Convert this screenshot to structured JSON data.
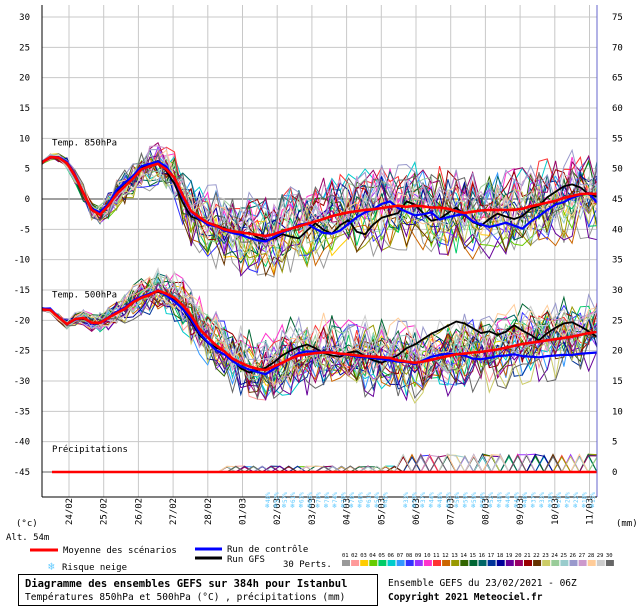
{
  "colors": {
    "mean": "#ff0000",
    "control": "#0000ff",
    "gfs": "#000000",
    "axis": "#000000",
    "grid": "#c8c8c8",
    "snow": "#66ccff"
  },
  "chart_data": {
    "type": "line",
    "y_left_ticks": [
      "30",
      "25",
      "20",
      "15",
      "10",
      "5",
      "0",
      "-5",
      "-10",
      "-15",
      "-20",
      "-25",
      "-30",
      "-35",
      "-40",
      "-45"
    ],
    "y_right_ticks": [
      "75",
      "70",
      "65",
      "60",
      "55",
      "50",
      "45",
      "40",
      "35",
      "30",
      "25",
      "20",
      "15",
      "10",
      "5",
      "0"
    ],
    "ylim_left": [
      -45,
      30
    ],
    "ylim_right": [
      0,
      75
    ],
    "left_unit": "(°c)",
    "right_unit": "(mm)",
    "altitude": "Alt. 54m",
    "x_tick_labels": [
      "24/02",
      "25/02",
      "26/02",
      "27/02",
      "28/02",
      "01/03",
      "02/03",
      "03/03",
      "04/03",
      "05/03",
      "06/03",
      "07/03",
      "08/03",
      "09/03",
      "10/03",
      "11/03"
    ],
    "panel_labels": {
      "t850": "Temp. 850hPa",
      "t500": "Temp. 500hPa",
      "precip": "Précipitations"
    },
    "series": [
      {
        "name": "Moyenne des scénarios",
        "panel": "t850",
        "color": "#ff0000",
        "values": [
          6.0,
          6.9,
          6.8,
          5.9,
          3.8,
          1.0,
          -1.8,
          -2.6,
          -1.1,
          0.8,
          2.1,
          3.4,
          4.9,
          5.4,
          5.8,
          4.9,
          3.5,
          0.6,
          -2.0,
          -3.0,
          -3.9,
          -4.4,
          -5.0,
          -5.3,
          -5.5,
          -5.7,
          -5.9,
          -6.1,
          -5.8,
          -5.3,
          -4.9,
          -4.5,
          -4.1,
          -3.7,
          -3.3,
          -2.8,
          -2.5,
          -2.2,
          -2.0,
          -1.8,
          -1.7,
          -1.5,
          -1.3,
          -1.1,
          -1.3,
          -1.1,
          -1.2,
          -1.4,
          -1.4,
          -1.6,
          -2.0,
          -2.3,
          -2.1,
          -1.9,
          -1.8,
          -1.8,
          -1.8,
          -1.8,
          -1.6,
          -1.2,
          -0.9,
          -0.6,
          -0.3,
          0.2,
          0.5,
          0.8,
          0.9,
          0.8
        ]
      },
      {
        "name": "Run de contrôle",
        "panel": "t850",
        "color": "#0000ff",
        "values": [
          6.1,
          6.9,
          6.9,
          6.1,
          4.0,
          1.0,
          -1.6,
          -2.2,
          -0.8,
          1.5,
          2.7,
          3.8,
          5.4,
          5.8,
          6.2,
          5.3,
          3.4,
          0.2,
          -2.1,
          -3.3,
          -4.2,
          -4.5,
          -5.2,
          -5.6,
          -5.9,
          -6.4,
          -6.8,
          -7.0,
          -6.3,
          -5.5,
          -5.0,
          -4.3,
          -4.0,
          -4.9,
          -5.6,
          -5.7,
          -5.2,
          -4.1,
          -3.0,
          -2.2,
          -1.7,
          -0.8,
          -0.4,
          -1.5,
          -2.1,
          -2.7,
          -2.5,
          -2.2,
          -3.4,
          -3.0,
          -2.7,
          -2.5,
          -3.7,
          -4.2,
          -4.6,
          -4.3,
          -3.9,
          -4.4,
          -4.9,
          -3.7,
          -2.8,
          -1.8,
          -0.9,
          -0.5,
          0.2,
          0.7,
          1.0,
          -0.6
        ]
      },
      {
        "name": "Run GFS",
        "panel": "t850",
        "color": "#000000",
        "values": [
          6.0,
          6.8,
          6.8,
          5.9,
          3.6,
          0.9,
          -1.5,
          -2.4,
          -0.9,
          1.3,
          2.6,
          3.7,
          5.1,
          5.7,
          6.3,
          4.6,
          2.5,
          -0.6,
          -2.9,
          -3.4,
          -3.9,
          -4.3,
          -4.8,
          -5.4,
          -5.9,
          -5.5,
          -6.3,
          -6.8,
          -6.5,
          -5.8,
          -6.2,
          -6.5,
          -5.2,
          -4.0,
          -5.1,
          -5.7,
          -4.3,
          -3.5,
          -5.4,
          -5.8,
          -4.2,
          -3.1,
          -2.7,
          -2.3,
          -0.4,
          -0.9,
          -2.3,
          -3.6,
          -3.3,
          -2.3,
          -1.4,
          -2.6,
          -3.8,
          -4.4,
          -3.3,
          -2.4,
          -2.9,
          -3.3,
          -2.8,
          -1.6,
          -1.1,
          0.3,
          1.2,
          2.1,
          2.4,
          1.9,
          0.8,
          0.4
        ]
      },
      {
        "name": "Moyenne des scénarios",
        "panel": "t500",
        "color": "#ff0000",
        "values": [
          -18.2,
          -18.3,
          -19.5,
          -20.6,
          -19.8,
          -19.6,
          -20.4,
          -20.4,
          -19.6,
          -18.8,
          -18.1,
          -17.0,
          -16.3,
          -15.8,
          -15.1,
          -15.6,
          -16.3,
          -17.5,
          -19.2,
          -21.4,
          -22.8,
          -24.1,
          -25.1,
          -26.3,
          -27.0,
          -27.6,
          -28.0,
          -28.2,
          -27.6,
          -27.0,
          -26.3,
          -25.8,
          -25.6,
          -25.4,
          -25.3,
          -25.3,
          -25.5,
          -25.6,
          -25.8,
          -25.9,
          -26.0,
          -26.1,
          -26.2,
          -26.6,
          -26.8,
          -27.0,
          -26.8,
          -26.5,
          -26.2,
          -25.9,
          -25.6,
          -25.5,
          -25.3,
          -25.2,
          -25.0,
          -24.8,
          -24.5,
          -24.2,
          -23.9,
          -23.7,
          -23.5,
          -23.3,
          -23.1,
          -22.9,
          -22.7,
          -22.4,
          -22.1,
          -21.9
        ]
      },
      {
        "name": "Run de contrôle",
        "panel": "t500",
        "color": "#0000ff",
        "values": [
          -18.0,
          -18.2,
          -19.4,
          -20.6,
          -19.9,
          -19.6,
          -20.5,
          -20.3,
          -19.5,
          -18.6,
          -17.9,
          -16.8,
          -16.1,
          -15.6,
          -15.1,
          -15.9,
          -16.9,
          -18.1,
          -19.8,
          -22.1,
          -23.6,
          -24.9,
          -25.6,
          -26.7,
          -27.6,
          -28.1,
          -28.5,
          -28.9,
          -28.0,
          -27.0,
          -26.3,
          -25.4,
          -25.1,
          -25.2,
          -25.2,
          -25.3,
          -25.6,
          -25.7,
          -26.0,
          -26.1,
          -26.2,
          -26.4,
          -26.6,
          -26.8,
          -26.9,
          -27.2,
          -26.6,
          -26.0,
          -25.7,
          -25.5,
          -25.6,
          -25.8,
          -26.3,
          -26.4,
          -26.2,
          -25.9,
          -25.8,
          -25.6,
          -25.9,
          -26.0,
          -26.1,
          -25.9,
          -25.8,
          -25.7,
          -25.7,
          -25.5,
          -25.4,
          -25.3
        ]
      },
      {
        "name": "Run GFS",
        "panel": "t500",
        "color": "#000000",
        "values": [
          -18.1,
          -18.3,
          -19.5,
          -20.7,
          -19.9,
          -19.7,
          -20.5,
          -20.3,
          -19.5,
          -18.7,
          -17.9,
          -16.9,
          -16.2,
          -15.7,
          -15.3,
          -15.8,
          -16.7,
          -18.2,
          -20.1,
          -22.4,
          -23.7,
          -24.5,
          -25.0,
          -26.5,
          -27.9,
          -28.6,
          -28.2,
          -27.8,
          -26.9,
          -25.8,
          -25.0,
          -24.4,
          -24.0,
          -24.6,
          -25.4,
          -25.8,
          -26.0,
          -25.3,
          -25.1,
          -25.9,
          -26.6,
          -27.0,
          -26.4,
          -25.7,
          -24.6,
          -24.0,
          -23.1,
          -22.2,
          -21.6,
          -20.9,
          -20.2,
          -20.5,
          -21.3,
          -22.1,
          -21.8,
          -22.4,
          -21.9,
          -20.8,
          -21.7,
          -22.4,
          -23.3,
          -22.1,
          -21.2,
          -20.5,
          -20.3,
          -21.0,
          -21.8,
          -22.7
        ]
      }
    ],
    "precip_snow_marks": [
      "48%",
      "52%",
      "57%",
      "61%",
      "63%",
      "66%",
      "70%",
      "70%",
      "74%",
      "70%",
      "70%",
      "66%",
      "61%",
      "54%",
      "45%",
      "33%",
      "29%",
      "37%",
      "44%",
      "48%",
      "52%",
      "56%",
      "59%",
      "59%",
      "56%",
      "52%",
      "48%",
      "44%",
      "44%",
      "40%",
      "37%",
      "33%",
      "30%",
      "29%",
      "26%",
      "22%",
      "18%",
      "15%"
    ]
  },
  "legend": {
    "mean": "Moyenne des scénarios",
    "control": "Run de contrôle",
    "gfs": "Run GFS",
    "perts": "30 Perts.",
    "snow": "Risque neige",
    "pert_numbers": [
      "01",
      "02",
      "03",
      "04",
      "05",
      "06",
      "07",
      "08",
      "09",
      "10",
      "11",
      "12",
      "13",
      "14",
      "15",
      "16",
      "17",
      "18",
      "19",
      "20",
      "21",
      "22",
      "23",
      "24",
      "25",
      "26",
      "27",
      "28",
      "29",
      "30"
    ],
    "pert_colors": [
      "#999999",
      "#ff9999",
      "#ffcc00",
      "#66cc00",
      "#00cc66",
      "#00cccc",
      "#3399ff",
      "#3333ff",
      "#9933ff",
      "#ff33cc",
      "#ff3333",
      "#cc6600",
      "#999900",
      "#336600",
      "#006633",
      "#006666",
      "#003399",
      "#000099",
      "#660099",
      "#990066",
      "#990000",
      "#663300",
      "#cccc66",
      "#99cc99",
      "#99cccc",
      "#9999cc",
      "#cc99cc",
      "#ffcc99",
      "#cccccc",
      "#666666"
    ]
  },
  "footer": {
    "title": "Diagramme des ensembles GEFS sur 384h pour Istanbul",
    "subtitle": "Températures 850hPa et 500hPa (°C) , précipitations (mm)",
    "run_info": "Ensemble GEFS du 23/02/2021 - 06Z",
    "copyright": "Copyright 2021 Meteociel.fr"
  }
}
